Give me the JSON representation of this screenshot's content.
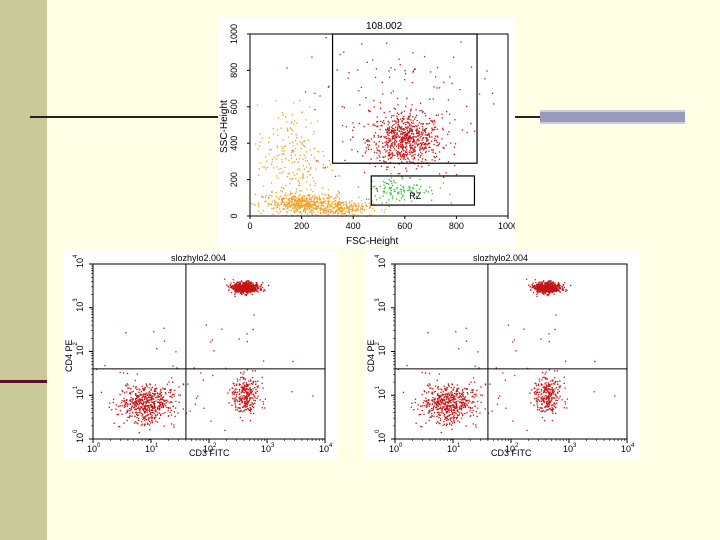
{
  "colors": {
    "background": "#ffffe6",
    "left_bar": "#c9c99a",
    "accent_line": "#5a0f2a",
    "right_bar": "#9a9abf",
    "red_population": "#c41414",
    "orange_population": "#f0a020",
    "green_population": "#2fbf2f"
  },
  "chart_data": [
    {
      "type": "scatter",
      "title": "108.002",
      "xlabel": "FSC-Height",
      "ylabel": "SSC-Height",
      "xlim": [
        0,
        1000
      ],
      "ylim": [
        0,
        1000
      ],
      "x_ticks": [
        "0",
        "200",
        "400",
        "600",
        "800",
        "1000"
      ],
      "y_ticks": [
        "0",
        "200",
        "400",
        "600",
        "800",
        "1000"
      ],
      "series": [
        {
          "color": "#c41414",
          "centers": [
            [
              600,
              400
            ],
            [
              650,
              500
            ],
            [
              560,
              330
            ]
          ]
        },
        {
          "color": "#f0a020",
          "centers": [
            [
              200,
              60
            ],
            [
              350,
              40
            ],
            [
              150,
              300
            ]
          ]
        },
        {
          "color": "#2fbf2f",
          "centers": [
            [
              570,
              150
            ]
          ]
        }
      ],
      "gates": [
        {
          "label": "",
          "x": [
            320,
            880
          ],
          "y": [
            290,
            1000
          ]
        },
        {
          "label": "RZ",
          "x": [
            470,
            870
          ],
          "y": [
            60,
            220
          ]
        }
      ]
    },
    {
      "type": "scatter",
      "title": "slozhylo2.004",
      "xlabel": "CD3 FITC",
      "ylabel": "CD4 PE",
      "scale": "log",
      "xlim": [
        1,
        10000
      ],
      "ylim": [
        1,
        10000
      ],
      "quadrant_x": 40,
      "quadrant_y": 40,
      "series": [
        {
          "color": "#c41414",
          "centers_log": [
            [
              2.6,
              3.5
            ],
            [
              0.9,
              0.8
            ],
            [
              2.6,
              1.0
            ]
          ]
        }
      ]
    },
    {
      "type": "scatter",
      "title": "slozhylo2.004",
      "xlabel": "CD3 FITC",
      "ylabel": "CD4 PE",
      "scale": "log",
      "xlim": [
        1,
        10000
      ],
      "ylim": [
        1,
        10000
      ],
      "quadrant_x": 40,
      "quadrant_y": 40,
      "series": [
        {
          "color": "#c41414",
          "centers_log": [
            [
              2.6,
              3.5
            ],
            [
              0.9,
              0.8
            ],
            [
              2.6,
              1.0
            ]
          ]
        }
      ]
    }
  ]
}
